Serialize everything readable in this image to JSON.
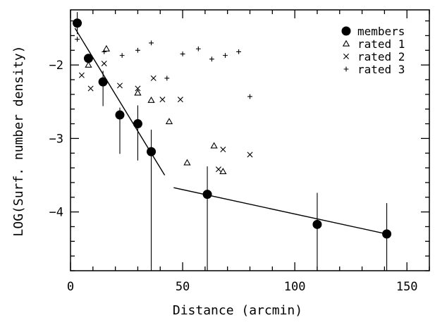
{
  "chart_data": {
    "type": "scatter",
    "title": "",
    "xlabel": "Distance (arcmin)",
    "ylabel": "LOG(Surf. number density)",
    "xlim": [
      0,
      160
    ],
    "ylim": [
      -4.8,
      -1.25
    ],
    "x_ticks": [
      0,
      50,
      100,
      150
    ],
    "y_ticks": [
      -2,
      -3,
      -4
    ],
    "x_tick_labels": [
      "0",
      "50",
      "100",
      "150"
    ],
    "y_tick_labels": [
      "−2",
      "−3",
      "−4"
    ],
    "legend_position": "top-right",
    "series": [
      {
        "name": "members",
        "marker": "filled-circle",
        "points": [
          {
            "x": 3,
            "y": -1.43,
            "yerr_low": 0.15,
            "yerr_high": 0.15
          },
          {
            "x": 8,
            "y": -1.91,
            "yerr_low": 0.05,
            "yerr_high": 0.05
          },
          {
            "x": 14.5,
            "y": -2.23,
            "yerr_low": 0.33,
            "yerr_high": 0.15
          },
          {
            "x": 22,
            "y": -2.68,
            "yerr_low": 0.53,
            "yerr_high": 0.1
          },
          {
            "x": 30,
            "y": -2.8,
            "yerr_low": 0.5,
            "yerr_high": 0.25
          },
          {
            "x": 36,
            "y": -3.18,
            "yerr_low": 1.62,
            "yerr_high": 0.3
          },
          {
            "x": 61,
            "y": -3.76,
            "yerr_low": 1.04,
            "yerr_high": 0.38
          },
          {
            "x": 110,
            "y": -4.17,
            "yerr_low": 0.63,
            "yerr_high": 0.43
          },
          {
            "x": 141,
            "y": -4.3,
            "yerr_low": 0.5,
            "yerr_high": 0.42
          }
        ]
      },
      {
        "name": "rated 1",
        "marker": "open-triangle",
        "points": [
          {
            "x": 3,
            "y": -1.43
          },
          {
            "x": 8,
            "y": -2.0
          },
          {
            "x": 16,
            "y": -1.78
          },
          {
            "x": 30,
            "y": -2.38
          },
          {
            "x": 36,
            "y": -2.48
          },
          {
            "x": 44,
            "y": -2.77
          },
          {
            "x": 52,
            "y": -3.33
          },
          {
            "x": 64,
            "y": -3.1
          },
          {
            "x": 68,
            "y": -3.45
          }
        ]
      },
      {
        "name": "rated 2",
        "marker": "cross",
        "points": [
          {
            "x": 5,
            "y": -2.14
          },
          {
            "x": 9,
            "y": -2.32
          },
          {
            "x": 15,
            "y": -1.98
          },
          {
            "x": 22,
            "y": -2.28
          },
          {
            "x": 30,
            "y": -2.32
          },
          {
            "x": 37,
            "y": -2.18
          },
          {
            "x": 41,
            "y": -2.47
          },
          {
            "x": 49,
            "y": -2.47
          },
          {
            "x": 66,
            "y": -3.42
          },
          {
            "x": 68,
            "y": -3.15
          },
          {
            "x": 80,
            "y": -3.22
          }
        ]
      },
      {
        "name": "rated 3",
        "marker": "plus",
        "points": [
          {
            "x": 3,
            "y": -1.65
          },
          {
            "x": 15,
            "y": -1.82
          },
          {
            "x": 23,
            "y": -1.87
          },
          {
            "x": 30,
            "y": -1.8
          },
          {
            "x": 36,
            "y": -1.7
          },
          {
            "x": 43,
            "y": -2.18
          },
          {
            "x": 50,
            "y": -1.85
          },
          {
            "x": 57,
            "y": -1.78
          },
          {
            "x": 63,
            "y": -1.92
          },
          {
            "x": 69,
            "y": -1.87
          },
          {
            "x": 75,
            "y": -1.82
          },
          {
            "x": 80,
            "y": -2.43
          }
        ]
      }
    ],
    "fit_lines": [
      {
        "x": [
          2,
          42
        ],
        "y": [
          -1.5,
          -3.5
        ]
      },
      {
        "x": [
          46,
          141
        ],
        "y": [
          -3.67,
          -4.3
        ]
      }
    ]
  }
}
